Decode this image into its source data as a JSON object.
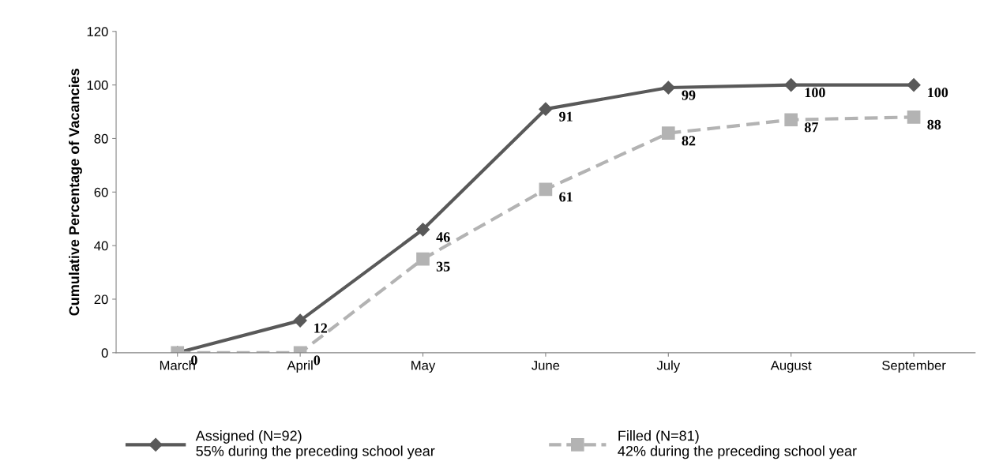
{
  "chart_data": {
    "type": "line",
    "ylabel": "Cumulative Percentage of Vacancies",
    "categories": [
      "March",
      "April",
      "May",
      "June",
      "July",
      "August",
      "September"
    ],
    "series": [
      {
        "name": "Assigned (N=92)\n55% during the preceding school year",
        "color": "#595959",
        "values": [
          0,
          12,
          46,
          91,
          99,
          100,
          100
        ],
        "value_labels": [
          "0",
          "12",
          "46",
          "91",
          "99",
          "100",
          "100"
        ],
        "marker": "diamond",
        "line_style": "solid"
      },
      {
        "name": "Filled (N=81)\n42% during the preceding school year",
        "color": "#b3b3b3",
        "values": [
          0,
          0,
          35,
          61,
          82,
          87,
          88
        ],
        "value_labels": [
          null,
          "0",
          "35",
          "61",
          "82",
          "87",
          "88"
        ],
        "marker": "square",
        "line_style": "dashed"
      }
    ],
    "ylim": [
      0,
      120
    ],
    "yticks": [
      0,
      20,
      40,
      60,
      80,
      100,
      120
    ],
    "grid": false,
    "legend": "bottom"
  }
}
